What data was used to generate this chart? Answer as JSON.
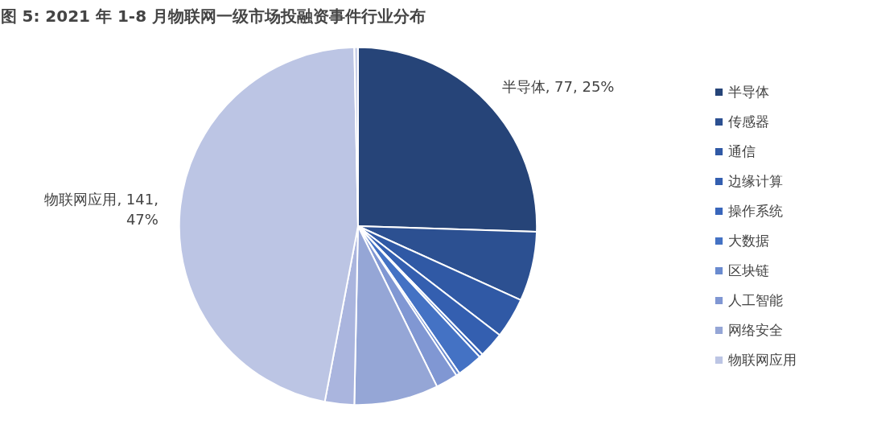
{
  "chart_data": {
    "type": "pie",
    "title": "图 5: 2021 年 1-8 月物联网一级市场投融资事件行业分布",
    "categories": [
      "半导体",
      "传感器",
      "通信",
      "边缘计算",
      "操作系统",
      "大数据",
      "区块链",
      "人工智能",
      "网络安全",
      null,
      "物联网应用",
      null
    ],
    "values": [
      77,
      19,
      11,
      7,
      1,
      7,
      1,
      6,
      23,
      8,
      141,
      1
    ],
    "colors": [
      "#264478",
      "#2c5091",
      "#3059a5",
      "#345fb0",
      "#3966bb",
      "#4472c4",
      "#6a8bcf",
      "#8097d3",
      "#95a6d6",
      "#aab5de",
      "#bcc5e4",
      "#c8cfe8"
    ],
    "value_labels": [
      "半导体, 77, 25%",
      null,
      null,
      null,
      null,
      null,
      null,
      null,
      null,
      null,
      "物联网应用, 141, 47%",
      null
    ],
    "legend": "right"
  }
}
